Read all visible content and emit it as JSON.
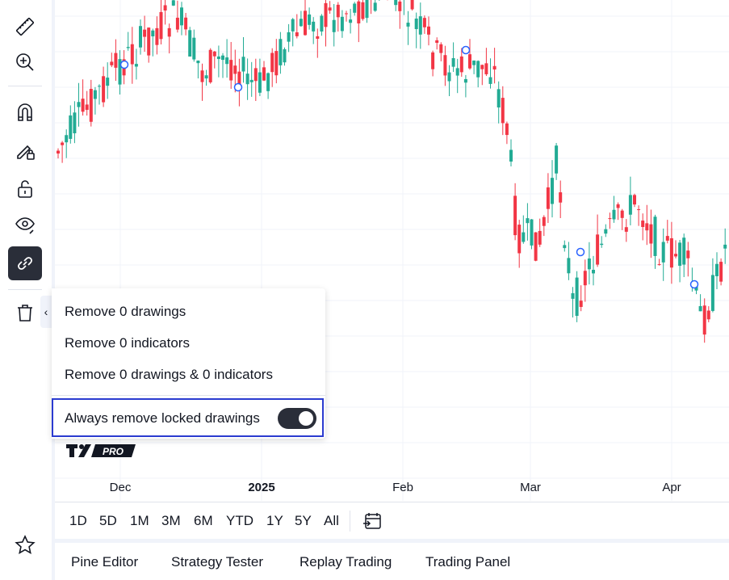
{
  "left_toolbar": {
    "tools": [
      {
        "icon": "ruler-icon"
      },
      {
        "icon": "zoom-in-icon"
      },
      {
        "icon": "magnet-icon"
      },
      {
        "icon": "lock-drawing-pencil-icon"
      },
      {
        "icon": "unlock-icon"
      },
      {
        "icon": "eye-icon"
      },
      {
        "icon": "link-icon",
        "active": true
      },
      {
        "icon": "trash-icon"
      }
    ],
    "bottom_icon": "star-icon",
    "collapse_glyph": "‹"
  },
  "chart": {
    "x_axis_labels": [
      {
        "text": "Dec",
        "bold": false
      },
      {
        "text": "2025",
        "bold": true
      },
      {
        "text": "Feb",
        "bold": false
      },
      {
        "text": "Mar",
        "bold": false
      },
      {
        "text": "Apr",
        "bold": false
      }
    ],
    "colors": {
      "up": "#22ab94",
      "down": "#f23645",
      "grid": "#f0f3fa",
      "marker": "#2962ff"
    },
    "logo_text": "PRO"
  },
  "popup": {
    "items": [
      "Remove 0 drawings",
      "Remove 0 indicators",
      "Remove 0 drawings & 0 indicators"
    ],
    "toggle_label": "Always remove locked drawings",
    "toggle_on": true
  },
  "range_bar": {
    "ranges": [
      "1D",
      "5D",
      "1M",
      "3M",
      "6M",
      "YTD",
      "1Y",
      "5Y",
      "All"
    ],
    "calendar_icon": "go-to-date-icon"
  },
  "bottom_tabs": [
    "Pine Editor",
    "Strategy Tester",
    "Replay Trading",
    "Trading Panel"
  ]
}
